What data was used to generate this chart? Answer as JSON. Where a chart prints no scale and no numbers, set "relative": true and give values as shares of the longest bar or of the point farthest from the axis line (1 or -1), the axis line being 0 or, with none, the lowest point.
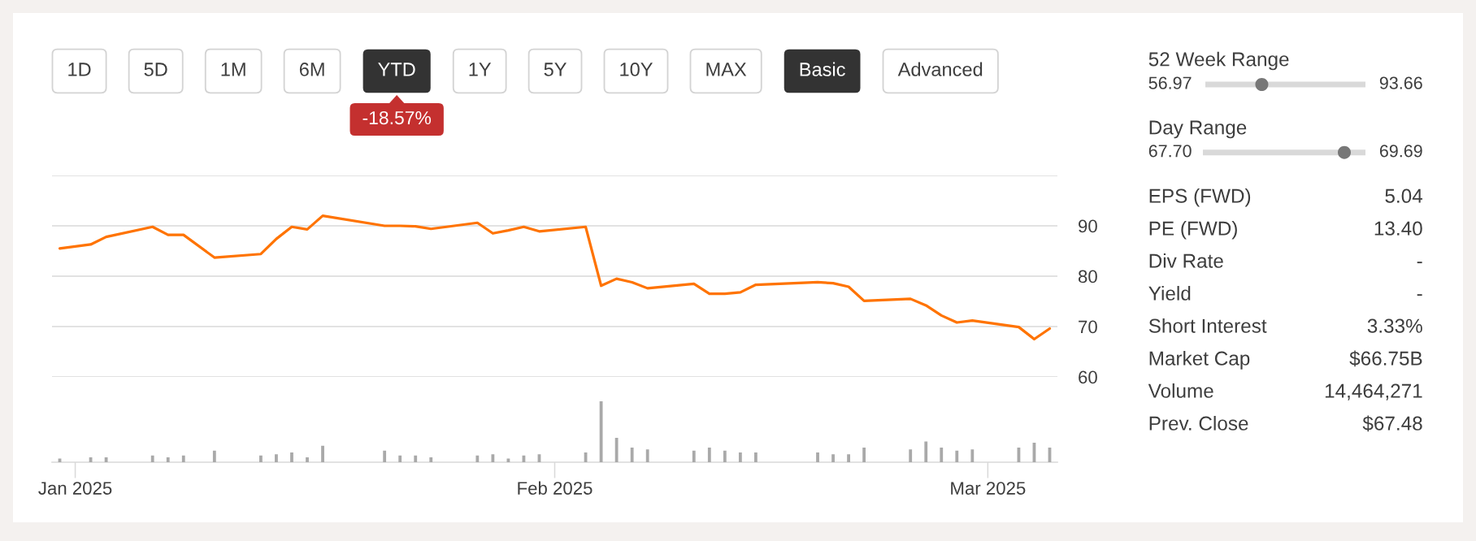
{
  "chart_data": [
    {
      "type": "other",
      "categories": [
        "1D",
        "5D",
        "1M",
        "6M",
        "YTD",
        "1Y",
        "5Y",
        "10Y",
        "MAX",
        "Basic",
        "Advanced"
      ],
      "colors": [
        "#ffffff",
        "#ffffff",
        "#ffffff",
        "#ffffff",
        "#333333",
        "#ffffff",
        "#ffffff",
        "#ffffff",
        "#ffffff",
        "#333333",
        "#ffffff"
      ],
      "annotations": [
        {
          "text": "-18.57%",
          "x": "YTD"
        }
      ]
    },
    {
      "type": "line",
      "x": [
        "2024-12-31",
        "2025-01-02",
        "2025-01-03",
        "2025-01-06",
        "2025-01-07",
        "2025-01-08",
        "2025-01-10",
        "2025-01-13",
        "2025-01-14",
        "2025-01-15",
        "2025-01-16",
        "2025-01-17",
        "2025-01-21",
        "2025-01-22",
        "2025-01-23",
        "2025-01-24",
        "2025-01-27",
        "2025-01-28",
        "2025-01-29",
        "2025-01-30",
        "2025-01-31",
        "2025-02-03",
        "2025-02-04",
        "2025-02-05",
        "2025-02-06",
        "2025-02-07",
        "2025-02-10",
        "2025-02-11",
        "2025-02-12",
        "2025-02-13",
        "2025-02-14",
        "2025-02-18",
        "2025-02-19",
        "2025-02-20",
        "2025-02-21",
        "2025-02-24",
        "2025-02-25",
        "2025-02-26",
        "2025-02-27",
        "2025-02-28",
        "2025-03-03",
        "2025-03-04",
        "2025-03-05"
      ],
      "values": [
        85.5,
        86.3,
        87.8,
        89.8,
        88.2,
        88.2,
        83.7,
        84.4,
        87.4,
        89.8,
        89.3,
        92.0,
        90.0,
        90.0,
        89.9,
        89.4,
        90.6,
        88.5,
        89.1,
        89.8,
        88.9,
        89.8,
        78.1,
        79.5,
        78.8,
        77.6,
        78.5,
        76.5,
        76.5,
        76.8,
        78.3,
        78.8,
        78.6,
        77.9,
        75.1,
        75.5,
        74.2,
        72.2,
        70.8,
        71.2,
        69.9,
        67.5,
        69.6
      ],
      "color": "#ff7300",
      "xlim": [
        "2024-12-30T12:00",
        "2025-03-05T12:00"
      ],
      "ylim": [
        60,
        100
      ],
      "yticks": [
        60,
        70,
        80,
        90,
        {
          "value": 100,
          "label": null
        }
      ],
      "grid": "y",
      "tick_labels": "y"
    },
    {
      "type": "bar",
      "x": [
        "2024-12-31",
        "2025-01-02",
        "2025-01-03",
        "2025-01-06",
        "2025-01-07",
        "2025-01-08",
        "2025-01-10",
        "2025-01-13",
        "2025-01-14",
        "2025-01-15",
        "2025-01-16",
        "2025-01-17",
        "2025-01-21",
        "2025-01-22",
        "2025-01-23",
        "2025-01-24",
        "2025-01-27",
        "2025-01-28",
        "2025-01-29",
        "2025-01-30",
        "2025-01-31",
        "2025-02-03",
        "2025-02-04",
        "2025-02-05",
        "2025-02-06",
        "2025-02-07",
        "2025-02-10",
        "2025-02-11",
        "2025-02-12",
        "2025-02-13",
        "2025-02-14",
        "2025-02-18",
        "2025-02-19",
        "2025-02-20",
        "2025-02-21",
        "2025-02-24",
        "2025-02-25",
        "2025-02-26",
        "2025-02-27",
        "2025-02-28",
        "2025-03-03",
        "2025-03-04",
        "2025-03-05"
      ],
      "values": [
        0.06,
        0.08,
        0.08,
        0.11,
        0.08,
        0.11,
        0.19,
        0.11,
        0.13,
        0.16,
        0.08,
        0.27,
        0.19,
        0.11,
        0.11,
        0.08,
        0.11,
        0.13,
        0.06,
        0.11,
        0.13,
        0.16,
        1,
        0.4,
        0.24,
        0.21,
        0.19,
        0.24,
        0.19,
        0.16,
        0.16,
        0.16,
        0.13,
        0.13,
        0.24,
        0.21,
        0.34,
        0.24,
        0.19,
        0.21,
        0.24,
        0.32,
        0.24
      ],
      "relative": true,
      "color": "#a9a9a9",
      "xlim": [
        "2024-12-30T12:00",
        "2025-03-05T12:00"
      ],
      "xticks": [
        {
          "value": "2025-01-01",
          "label": "Jan 2025"
        },
        {
          "value": "2025-02-01",
          "label": "Feb 2025"
        },
        {
          "value": "2025-03-01",
          "label": "Mar 2025"
        }
      ]
    },
    {
      "type": "other",
      "title": "52 Week Range",
      "annotations": [
        "56.97",
        "93.66"
      ]
    },
    {
      "type": "other",
      "title": "Day Range",
      "annotations": [
        "67.70",
        "69.69"
      ]
    },
    {
      "type": "other",
      "categories": [
        "EPS (FWD)",
        "PE (FWD)",
        "Div Rate",
        "Yield",
        "Short Interest",
        "Market Cap",
        "Volume",
        "Prev. Close"
      ],
      "value_labels": [
        "5.04",
        "13.40",
        "-",
        "-",
        "3.33%",
        "$66.75B",
        "14,464,271",
        "$67.48"
      ]
    }
  ]
}
